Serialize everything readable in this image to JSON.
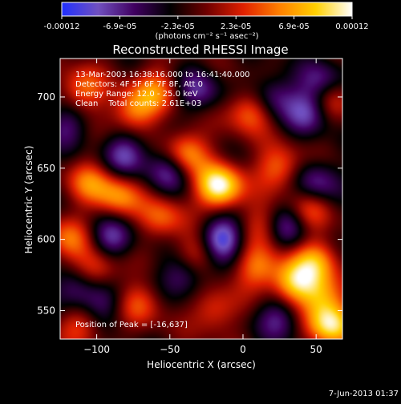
{
  "colorbar": {
    "tick_labels": [
      "-0.00012",
      "-6.9e-05",
      "-2.3e-05",
      "2.3e-05",
      "6.9e-05",
      "0.00012"
    ],
    "units_label": "(photons cm⁻² s⁻¹ asec⁻²)",
    "range": [
      -0.00012,
      0.00012
    ],
    "palette": [
      "#2030ff",
      "#7050c0",
      "#400060",
      "#000000",
      "#700000",
      "#e02000",
      "#ff8000",
      "#ffd000",
      "#ffffff"
    ]
  },
  "chart_data": {
    "type": "heatmap",
    "title": "Reconstructed RHESSI Image",
    "xlabel": "Heliocentric X (arcsec)",
    "ylabel": "Heliocentric Y (arcsec)",
    "xlim": [
      -125,
      68
    ],
    "ylim": [
      530,
      727
    ],
    "xticks": [
      -100,
      -50,
      0,
      50
    ],
    "yticks": [
      550,
      600,
      650,
      700
    ],
    "info_lines": [
      "13-Mar-2003 16:38:16.000 to 16:41:40.000",
      "Detectors: 4F 5F 6F 7F 8F, Att 0",
      "Energy Range: 12.0 - 25.0 keV",
      "Clean    Total counts: 2.61E+03"
    ],
    "peak_label": "Position of Peak = [-16,637]",
    "peak_position": [
      -16,
      637
    ],
    "hot_sources": [
      {
        "x": -16,
        "y": 637,
        "amp": 1.0
      },
      {
        "x": -40,
        "y": 660,
        "amp": 0.7
      },
      {
        "x": -75,
        "y": 690,
        "amp": 0.55
      },
      {
        "x": -110,
        "y": 705,
        "amp": 0.5
      },
      {
        "x": 5,
        "y": 690,
        "amp": 0.55
      },
      {
        "x": 25,
        "y": 650,
        "amp": 0.5
      },
      {
        "x": -105,
        "y": 640,
        "amp": 0.45
      },
      {
        "x": -85,
        "y": 630,
        "amp": 0.55
      },
      {
        "x": -55,
        "y": 615,
        "amp": 0.45
      },
      {
        "x": -120,
        "y": 600,
        "amp": 0.45
      },
      {
        "x": -100,
        "y": 580,
        "amp": 0.5
      },
      {
        "x": -30,
        "y": 590,
        "amp": 0.45
      },
      {
        "x": 15,
        "y": 610,
        "amp": 0.4
      },
      {
        "x": 10,
        "y": 580,
        "amp": 0.5
      },
      {
        "x": 35,
        "y": 570,
        "amp": 0.75
      },
      {
        "x": 50,
        "y": 585,
        "amp": 0.55
      },
      {
        "x": 55,
        "y": 560,
        "amp": 0.55
      },
      {
        "x": -70,
        "y": 555,
        "amp": 0.4
      },
      {
        "x": -20,
        "y": 550,
        "amp": 0.4
      },
      {
        "x": 60,
        "y": 540,
        "amp": 0.85
      },
      {
        "x": -110,
        "y": 540,
        "amp": 0.4
      },
      {
        "x": 45,
        "y": 620,
        "amp": 0.4
      },
      {
        "x": 60,
        "y": 700,
        "amp": 0.45
      },
      {
        "x": -60,
        "y": 705,
        "amp": 0.45
      }
    ],
    "cold_sources": [
      {
        "x": -50,
        "y": 650,
        "amp": 0.55
      },
      {
        "x": -80,
        "y": 660,
        "amp": 0.5
      },
      {
        "x": -90,
        "y": 600,
        "amp": 0.5
      },
      {
        "x": -15,
        "y": 600,
        "amp": 0.75
      },
      {
        "x": -40,
        "y": 575,
        "amp": 0.45
      },
      {
        "x": 30,
        "y": 610,
        "amp": 0.5
      },
      {
        "x": 45,
        "y": 690,
        "amp": 0.5
      },
      {
        "x": 55,
        "y": 710,
        "amp": 0.5
      },
      {
        "x": 20,
        "y": 700,
        "amp": 0.45
      },
      {
        "x": -115,
        "y": 565,
        "amp": 0.45
      },
      {
        "x": -95,
        "y": 555,
        "amp": 0.35
      },
      {
        "x": 50,
        "y": 640,
        "amp": 0.45
      },
      {
        "x": -30,
        "y": 705,
        "amp": 0.4
      },
      {
        "x": -120,
        "y": 680,
        "amp": 0.35
      },
      {
        "x": 25,
        "y": 545,
        "amp": 0.4
      }
    ]
  },
  "footer": {
    "date_stamp": "7-Jun-2013 01:37"
  }
}
